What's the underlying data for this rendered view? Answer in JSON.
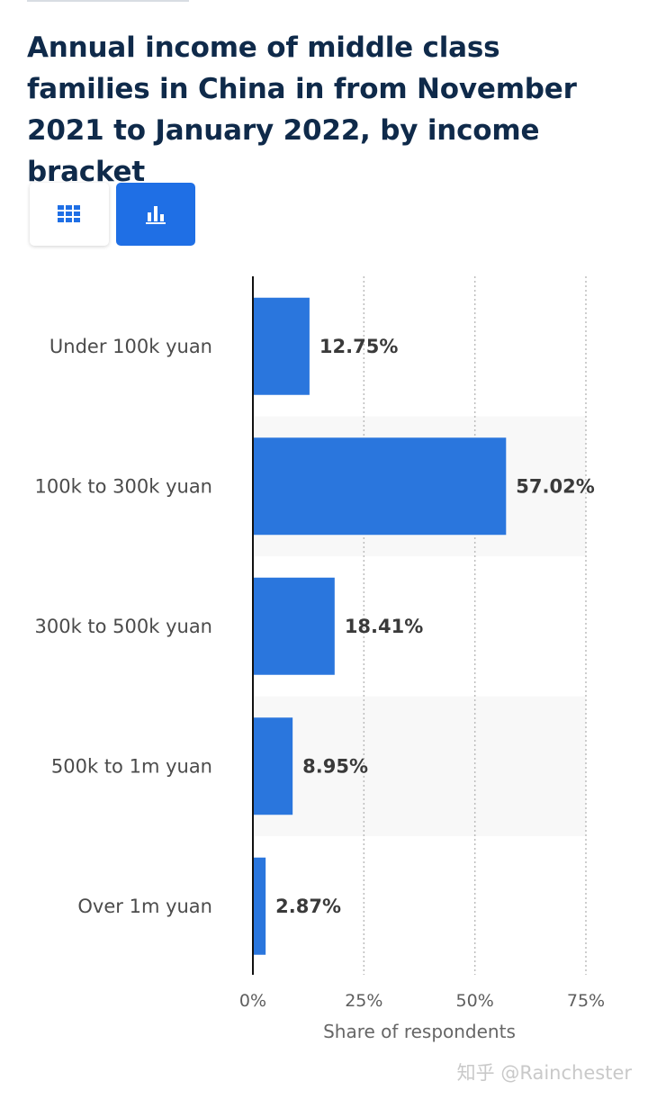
{
  "title": "Annual income of middle class families in China in from November 2021 to January 2022, by income bracket",
  "view_toggle": {
    "table_icon": "table-grid-icon",
    "chart_icon": "bar-chart-icon"
  },
  "colors": {
    "bar": "#2a76dd",
    "title": "#0f2a4a",
    "active_toggle": "#1f6fe5"
  },
  "watermark": "知乎 @Rainchester",
  "chart_data": {
    "type": "bar",
    "orientation": "horizontal",
    "categories": [
      "Under 100k yuan",
      "100k to 300k yuan",
      "300k to 500k yuan",
      "500k to 1m yuan",
      "Over 1m yuan"
    ],
    "values": [
      12.75,
      57.02,
      18.41,
      8.95,
      2.87
    ],
    "value_labels": [
      "12.75%",
      "57.02%",
      "18.41%",
      "8.95%",
      "2.87%"
    ],
    "xlabel": "Share of respondents",
    "ylabel": "",
    "xlim": [
      0,
      75
    ],
    "xticks": [
      0,
      25,
      50,
      75
    ],
    "xtick_labels": [
      "0%",
      "25%",
      "50%",
      "75%"
    ],
    "grid": "vertical dotted"
  }
}
